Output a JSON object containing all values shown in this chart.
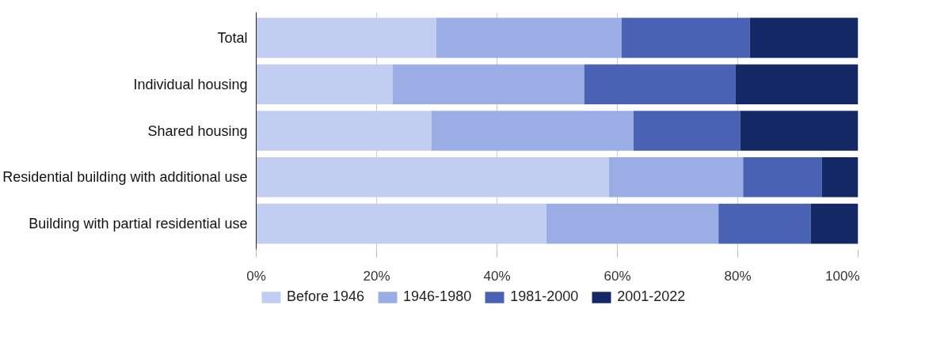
{
  "chart_data": {
    "type": "bar",
    "orientation": "horizontal",
    "stacked": true,
    "categories": [
      "Total",
      "Individual housing",
      "Shared housing",
      "Residential building with additional use",
      "Building with partial residential use"
    ],
    "series": [
      {
        "name": "Before 1946",
        "color": "#c2cef1",
        "values": [
          29.9,
          22.7,
          29.1,
          58.6,
          48.2
        ]
      },
      {
        "name": "1946-1980",
        "color": "#9aaee5",
        "values": [
          30.8,
          31.8,
          33.6,
          22.3,
          28.6
        ]
      },
      {
        "name": "1981-2000",
        "color": "#4a62b3",
        "values": [
          21.3,
          25.1,
          17.7,
          13.1,
          15.3
        ]
      },
      {
        "name": "2001-2022",
        "color": "#142866",
        "values": [
          18.0,
          20.4,
          19.6,
          6.0,
          7.9
        ]
      }
    ],
    "xlim": [
      0,
      100
    ],
    "xticks": [
      {
        "value": 0,
        "label": "0%"
      },
      {
        "value": 20,
        "label": "20%"
      },
      {
        "value": 40,
        "label": "40%"
      },
      {
        "value": 60,
        "label": "60%"
      },
      {
        "value": 80,
        "label": "80%"
      },
      {
        "value": 100,
        "label": "100%"
      }
    ],
    "grid": "x",
    "legend": "bottom"
  }
}
